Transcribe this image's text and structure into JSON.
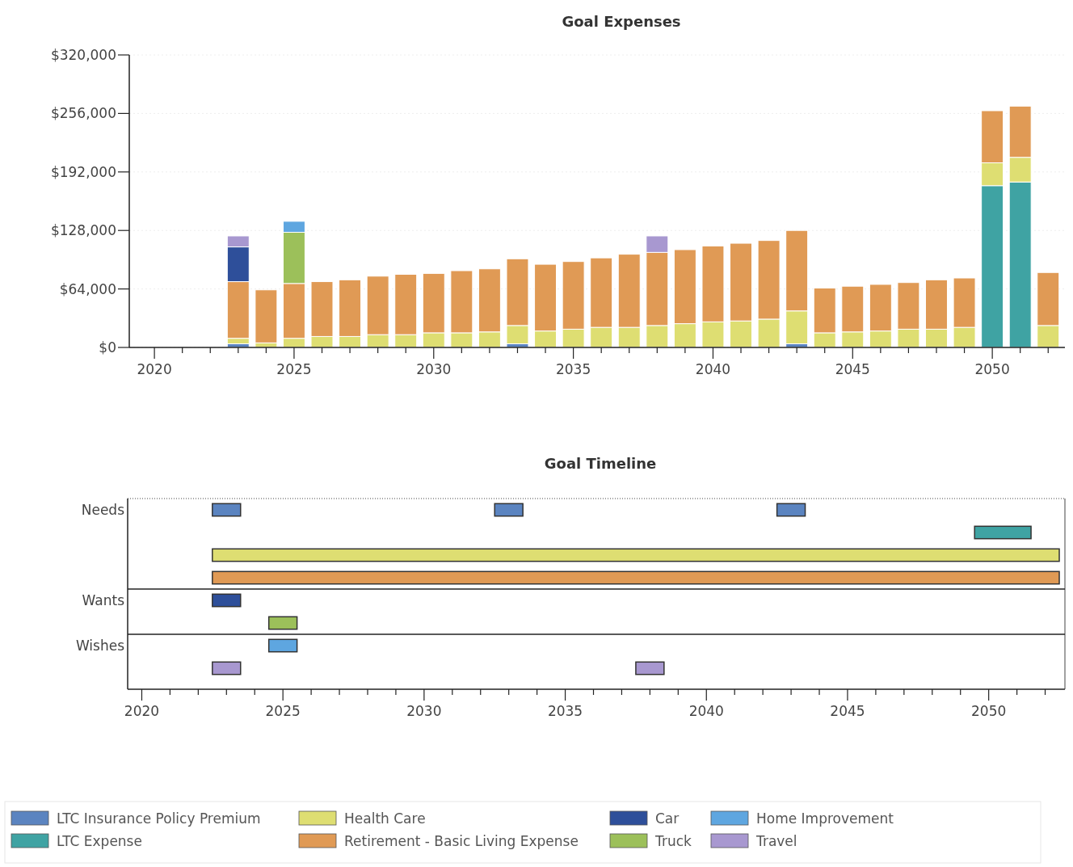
{
  "chart_data": [
    {
      "type": "bar",
      "title": "Goal Expenses",
      "stacked": true,
      "grid": "y",
      "legend": "bottom",
      "x": [
        2023,
        2024,
        2025,
        2026,
        2027,
        2028,
        2029,
        2030,
        2031,
        2032,
        2033,
        2034,
        2035,
        2036,
        2037,
        2038,
        2039,
        2040,
        2041,
        2042,
        2043,
        2044,
        2045,
        2046,
        2047,
        2048,
        2049,
        2050,
        2051,
        2052
      ],
      "xlim": [
        2019.1,
        2052.6
      ],
      "xticks": [
        2020,
        {
          "value": 2021,
          "label": null
        },
        {
          "value": 2022,
          "label": null
        },
        {
          "value": 2023,
          "label": null
        },
        {
          "value": 2024,
          "label": null
        },
        2025,
        {
          "value": 2026,
          "label": null
        },
        {
          "value": 2027,
          "label": null
        },
        {
          "value": 2028,
          "label": null
        },
        {
          "value": 2029,
          "label": null
        },
        2030,
        {
          "value": 2031,
          "label": null
        },
        {
          "value": 2032,
          "label": null
        },
        {
          "value": 2033,
          "label": null
        },
        {
          "value": 2034,
          "label": null
        },
        2035,
        {
          "value": 2036,
          "label": null
        },
        {
          "value": 2037,
          "label": null
        },
        {
          "value": 2038,
          "label": null
        },
        {
          "value": 2039,
          "label": null
        },
        2040,
        {
          "value": 2041,
          "label": null
        },
        {
          "value": 2042,
          "label": null
        },
        {
          "value": 2043,
          "label": null
        },
        {
          "value": 2044,
          "label": null
        },
        2045,
        {
          "value": 2046,
          "label": null
        },
        {
          "value": 2047,
          "label": null
        },
        {
          "value": 2048,
          "label": null
        },
        {
          "value": 2049,
          "label": null
        },
        2050,
        {
          "value": 2051,
          "label": null
        },
        {
          "value": 2052,
          "label": null
        }
      ],
      "ylim": [
        0,
        320000
      ],
      "yticks": [
        {
          "value": 0,
          "label": "$0"
        },
        {
          "value": 64000,
          "label": "$64,000"
        },
        {
          "value": 128000,
          "label": "$128,000"
        },
        {
          "value": 192000,
          "label": "$192,000"
        },
        {
          "value": 256000,
          "label": "$256,000"
        },
        {
          "value": 320000,
          "label": "$320,000"
        }
      ],
      "series": [
        {
          "name": "LTC Insurance Policy Premium",
          "color": "#5b84c0",
          "values": [
            4000,
            null,
            null,
            null,
            null,
            null,
            null,
            null,
            null,
            null,
            4000,
            null,
            null,
            null,
            null,
            null,
            null,
            null,
            null,
            null,
            4000,
            null,
            null,
            null,
            null,
            null,
            null,
            null,
            null,
            null
          ]
        },
        {
          "name": "LTC Expense",
          "color": "#3fa3a3",
          "values": [
            null,
            null,
            null,
            null,
            null,
            null,
            null,
            null,
            null,
            null,
            null,
            null,
            null,
            null,
            null,
            null,
            null,
            null,
            null,
            null,
            null,
            null,
            null,
            null,
            null,
            null,
            null,
            177000,
            181000,
            null
          ]
        },
        {
          "name": "Health Care",
          "color": "#dede72",
          "values": [
            6000,
            5000,
            10000,
            12000,
            12000,
            14000,
            14000,
            16000,
            16000,
            17000,
            20000,
            18000,
            20000,
            22000,
            22000,
            24000,
            26000,
            28000,
            29000,
            31000,
            36000,
            16000,
            17000,
            18000,
            20000,
            20000,
            22000,
            25000,
            27000,
            24000
          ]
        },
        {
          "name": "Retirement - Basic Living Expense",
          "color": "#e09a55",
          "values": [
            62000,
            58000,
            60000,
            60000,
            62000,
            64000,
            66000,
            65000,
            68000,
            69000,
            73000,
            73000,
            74000,
            76000,
            80000,
            80000,
            81000,
            83000,
            85000,
            86000,
            88000,
            49000,
            50000,
            51000,
            51000,
            54000,
            54000,
            57000,
            56000,
            58000
          ]
        },
        {
          "name": "Car",
          "color": "#2e4f9a",
          "values": [
            38000,
            null,
            null,
            null,
            null,
            null,
            null,
            null,
            null,
            null,
            null,
            null,
            null,
            null,
            null,
            null,
            null,
            null,
            null,
            null,
            null,
            null,
            null,
            null,
            null,
            null,
            null,
            null,
            null,
            null
          ]
        },
        {
          "name": "Truck",
          "color": "#9cc05a",
          "values": [
            null,
            null,
            56000,
            null,
            null,
            null,
            null,
            null,
            null,
            null,
            null,
            null,
            null,
            null,
            null,
            null,
            null,
            null,
            null,
            null,
            null,
            null,
            null,
            null,
            null,
            null,
            null,
            null,
            null,
            null
          ]
        },
        {
          "name": "Home Improvement",
          "color": "#5ea6e0",
          "values": [
            null,
            null,
            12000,
            null,
            null,
            null,
            null,
            null,
            null,
            null,
            null,
            null,
            null,
            null,
            null,
            null,
            null,
            null,
            null,
            null,
            null,
            null,
            null,
            null,
            null,
            null,
            null,
            null,
            null,
            null
          ]
        },
        {
          "name": "Travel",
          "color": "#a898d0",
          "values": [
            12000,
            null,
            null,
            null,
            null,
            null,
            null,
            null,
            null,
            null,
            null,
            null,
            null,
            null,
            null,
            18000,
            null,
            null,
            null,
            null,
            null,
            null,
            null,
            null,
            null,
            null,
            null,
            null,
            null,
            null
          ]
        }
      ]
    },
    {
      "type": "bar",
      "title": "Goal Timeline",
      "orientation": "horizontal",
      "categories": [
        "Needs",
        null,
        null,
        null,
        "Wants",
        null,
        "Wishes",
        null
      ],
      "xlim": [
        2019.5,
        2052.7
      ],
      "xticks": [
        2020,
        {
          "value": 2021,
          "label": null
        },
        {
          "value": 2022,
          "label": null
        },
        {
          "value": 2023,
          "label": null
        },
        {
          "value": 2024,
          "label": null
        },
        2025,
        {
          "value": 2026,
          "label": null
        },
        {
          "value": 2027,
          "label": null
        },
        {
          "value": 2028,
          "label": null
        },
        {
          "value": 2029,
          "label": null
        },
        2030,
        {
          "value": 2031,
          "label": null
        },
        {
          "value": 2032,
          "label": null
        },
        {
          "value": 2033,
          "label": null
        },
        {
          "value": 2034,
          "label": null
        },
        2035,
        {
          "value": 2036,
          "label": null
        },
        {
          "value": 2037,
          "label": null
        },
        {
          "value": 2038,
          "label": null
        },
        {
          "value": 2039,
          "label": null
        },
        2040,
        {
          "value": 2041,
          "label": null
        },
        {
          "value": 2042,
          "label": null
        },
        {
          "value": 2043,
          "label": null
        },
        {
          "value": 2044,
          "label": null
        },
        2045,
        {
          "value": 2046,
          "label": null
        },
        {
          "value": 2047,
          "label": null
        },
        {
          "value": 2048,
          "label": null
        },
        {
          "value": 2049,
          "label": null
        },
        2050,
        {
          "value": 2051,
          "label": null
        },
        {
          "value": 2052,
          "label": null
        }
      ],
      "series": [
        {
          "colors": [
            "#5b84c0",
            "#3fa3a3",
            "#dede72",
            "#e09a55",
            "#2e4f9a",
            "#9cc05a",
            "#5ea6e0",
            "#a898d0"
          ],
          "base": [
            2022.5,
            2049.5,
            2022.5,
            2022.5,
            2022.5,
            2024.5,
            2024.5,
            2022.5
          ],
          "values": [
            1,
            2,
            30,
            30,
            1,
            1,
            1,
            1
          ]
        },
        {
          "colors": [
            "#5b84c0",
            null,
            null,
            null,
            null,
            null,
            null,
            "#a898d0"
          ],
          "base": [
            2032.5,
            null,
            null,
            null,
            null,
            null,
            null,
            2037.5
          ],
          "values": [
            1,
            null,
            null,
            null,
            null,
            null,
            null,
            1
          ]
        },
        {
          "colors": [
            "#5b84c0",
            null,
            null,
            null,
            null,
            null,
            null,
            null
          ],
          "base": [
            2042.5,
            null,
            null,
            null,
            null,
            null,
            null,
            null
          ],
          "values": [
            1,
            null,
            null,
            null,
            null,
            null,
            null,
            null
          ]
        }
      ]
    }
  ]
}
